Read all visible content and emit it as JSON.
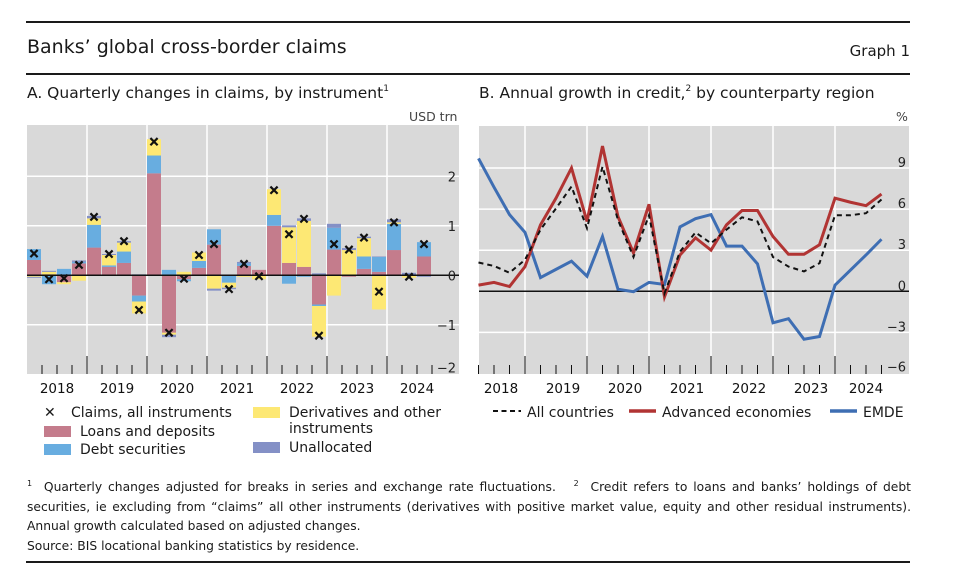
{
  "header": {
    "title": "Banks’ global cross-border claims",
    "graph_number": "Graph 1"
  },
  "panels": {
    "a": {
      "title": "A. Quarterly changes in claims, by instrument",
      "title_sup": "1",
      "unit": "USD trn"
    },
    "b": {
      "title": "B. Annual growth in credit,",
      "title_sup": "2",
      "title_rest": " by counterparty region",
      "unit": "%"
    }
  },
  "legend_a": {
    "claims": "Claims, all instruments",
    "loans": "Loans and deposits",
    "debt": "Debt securities",
    "deriv_line1": "Derivatives and other",
    "deriv_line2": "instruments",
    "unalloc": "Unallocated"
  },
  "legend_b": {
    "all": "All countries",
    "adv": "Advanced economies",
    "emde": "EMDE"
  },
  "colors": {
    "loans": "#c47c8c",
    "debt": "#68ade0",
    "deriv": "#fde874",
    "unalloc": "#8490c6",
    "plot_bg": "#d9d9d9",
    "adv_line": "#b13433",
    "emde_line": "#3e6eb3",
    "all_line": "#111111"
  },
  "notes": {
    "n1_sup": "1",
    "n1": "Quarterly changes adjusted for breaks in series and exchange rate fluctuations.",
    "n2_sup": "2",
    "n2": "Credit refers to loans and banks’ holdings of debt securities, ie excluding from “claims” all other instruments (derivatives with positive market value, equity and other residual instruments). Annual growth calculated based on adjusted changes.",
    "source": "Source: BIS locational banking statistics by residence."
  },
  "chart_data": [
    {
      "type": "bar",
      "stacked": true,
      "title": "A. Quarterly changes in claims, by instrument",
      "ylabel": "USD trn",
      "ylim": [
        -2,
        3
      ],
      "yticks": [
        -2,
        -1,
        0,
        1,
        2
      ],
      "year_labels": [
        "2018",
        "2019",
        "2020",
        "2021",
        "2022",
        "2023",
        "2024"
      ],
      "categories": [
        "2018Q1",
        "2018Q2",
        "2018Q3",
        "2018Q4",
        "2019Q1",
        "2019Q2",
        "2019Q3",
        "2019Q4",
        "2020Q1",
        "2020Q2",
        "2020Q3",
        "2020Q4",
        "2021Q1",
        "2021Q2",
        "2021Q3",
        "2021Q4",
        "2022Q1",
        "2022Q2",
        "2022Q3",
        "2022Q4",
        "2023Q1",
        "2023Q2",
        "2023Q3",
        "2023Q4",
        "2024Q1",
        "2024Q2",
        "2024Q3"
      ],
      "series": [
        {
          "name": "Loans and deposits",
          "values": [
            0.31,
            0.02,
            -0.14,
            0.24,
            0.56,
            0.17,
            0.25,
            -0.41,
            2.06,
            -1.16,
            -0.08,
            0.15,
            0.62,
            0.0,
            0.19,
            0.11,
            1.0,
            0.25,
            0.17,
            -0.59,
            0.52,
            -0.03,
            0.13,
            0.07,
            0.51,
            0.0,
            0.38
          ]
        },
        {
          "name": "Debt securities",
          "values": [
            0.22,
            -0.18,
            0.13,
            0.03,
            0.46,
            0.03,
            0.23,
            -0.12,
            0.36,
            0.11,
            -0.04,
            0.14,
            0.31,
            -0.15,
            0.05,
            0.0,
            0.22,
            -0.17,
            -0.03,
            -0.03,
            0.44,
            0.0,
            0.25,
            0.3,
            0.53,
            0.0,
            0.29
          ]
        },
        {
          "name": "Derivatives and other instruments",
          "values": [
            -0.03,
            0.05,
            -0.04,
            -0.11,
            0.13,
            0.21,
            0.18,
            -0.24,
            0.33,
            -0.04,
            0.07,
            0.17,
            -0.27,
            -0.1,
            -0.03,
            -0.08,
            0.52,
            0.72,
            0.93,
            -0.62,
            -0.41,
            0.51,
            0.37,
            -0.69,
            0.03,
            -0.05,
            0.0
          ]
        },
        {
          "name": "Unallocated",
          "values": [
            -0.02,
            0.02,
            0.0,
            0.03,
            0.05,
            0.02,
            0.03,
            0.02,
            0.0,
            -0.05,
            0.0,
            0.0,
            -0.04,
            -0.03,
            0.03,
            0.0,
            0.0,
            0.04,
            0.05,
            0.04,
            0.08,
            0.04,
            0.03,
            0.01,
            0.06,
            0.05,
            -0.03
          ]
        }
      ],
      "markers": {
        "name": "Claims, all instruments",
        "values": [
          0.44,
          -0.08,
          -0.06,
          0.21,
          1.18,
          0.43,
          0.69,
          -0.7,
          2.7,
          -1.16,
          -0.07,
          0.41,
          0.63,
          -0.28,
          0.23,
          -0.02,
          1.72,
          0.83,
          1.14,
          -1.22,
          0.63,
          0.52,
          0.76,
          -0.33,
          1.07,
          -0.03,
          0.63
        ]
      }
    },
    {
      "type": "line",
      "title": "B. Annual growth in credit, by counterparty region",
      "ylabel": "%",
      "ylim": [
        -6,
        10.4
      ],
      "yticks": [
        -6,
        -3,
        0,
        3,
        6,
        9
      ],
      "year_labels": [
        "2018",
        "2019",
        "2020",
        "2021",
        "2022",
        "2023",
        "2024"
      ],
      "x": [
        "2018Q1",
        "2018Q2",
        "2018Q3",
        "2018Q4",
        "2019Q1",
        "2019Q2",
        "2019Q3",
        "2019Q4",
        "2020Q1",
        "2020Q2",
        "2020Q3",
        "2020Q4",
        "2021Q1",
        "2021Q2",
        "2021Q3",
        "2021Q4",
        "2022Q1",
        "2022Q2",
        "2022Q3",
        "2022Q4",
        "2023Q1",
        "2023Q2",
        "2023Q3",
        "2023Q4",
        "2024Q1",
        "2024Q2",
        "2024Q3"
      ],
      "series": [
        {
          "name": "All countries",
          "style": "dashed",
          "values": [
            2.1,
            1.85,
            1.35,
            2.3,
            4.5,
            6.05,
            7.65,
            4.6,
            9.1,
            5.2,
            2.5,
            5.55,
            -0.15,
            2.9,
            4.3,
            3.5,
            4.5,
            5.4,
            5.1,
            2.5,
            1.8,
            1.45,
            2.05,
            5.55,
            5.55,
            5.7,
            6.7
          ]
        },
        {
          "name": "Advanced economies",
          "style": "solid",
          "values": [
            0.45,
            0.65,
            0.35,
            1.8,
            4.85,
            6.8,
            9.0,
            5.1,
            10.6,
            5.45,
            2.8,
            6.35,
            -0.4,
            2.65,
            3.9,
            3.0,
            4.85,
            5.9,
            5.9,
            4.0,
            2.7,
            2.7,
            3.4,
            6.8,
            6.5,
            6.25,
            7.1
          ]
        },
        {
          "name": "EMDE",
          "style": "solid",
          "values": [
            9.7,
            7.6,
            5.6,
            4.3,
            1.0,
            1.6,
            2.2,
            1.1,
            4.0,
            0.15,
            -0.03,
            0.65,
            0.5,
            4.7,
            5.3,
            5.6,
            3.3,
            3.3,
            2.0,
            -2.3,
            -2.0,
            -3.5,
            -3.3,
            0.45,
            1.55,
            2.65,
            3.8
          ]
        }
      ]
    }
  ]
}
